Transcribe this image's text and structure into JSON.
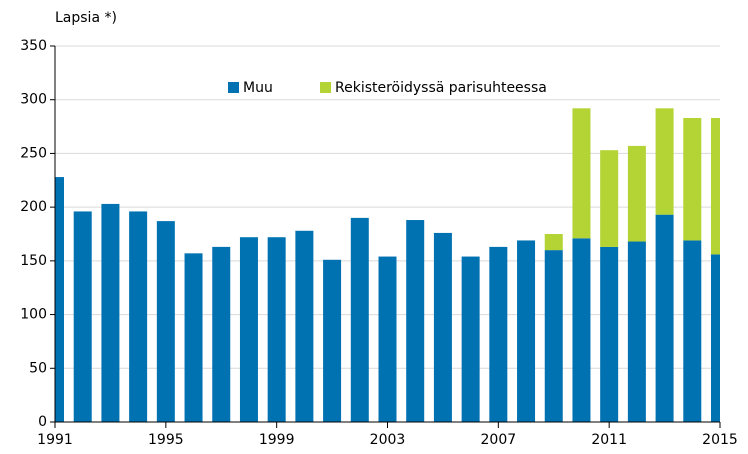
{
  "chart_data": {
    "type": "stacked-bar",
    "y_label": "Lapsia *)",
    "x": [
      1991,
      1992,
      1993,
      1994,
      1995,
      1996,
      1997,
      1998,
      1999,
      2000,
      2001,
      2002,
      2003,
      2004,
      2005,
      2006,
      2007,
      2008,
      2009,
      2010,
      2011,
      2012,
      2013,
      2014,
      2015
    ],
    "series": [
      {
        "name": "Muu",
        "color": "#0072b2",
        "values": [
          228,
          196,
          203,
          196,
          187,
          157,
          163,
          172,
          172,
          178,
          151,
          190,
          154,
          188,
          176,
          154,
          163,
          169,
          160,
          171,
          163,
          168,
          193,
          169,
          156
        ]
      },
      {
        "name": "Rekisteröidyssä parisuhteessa",
        "color": "#b4d334",
        "values": [
          null,
          null,
          null,
          null,
          null,
          null,
          null,
          null,
          null,
          null,
          null,
          null,
          null,
          null,
          null,
          null,
          null,
          null,
          15,
          121,
          90,
          89,
          99,
          114,
          127
        ]
      }
    ],
    "xlim": [
      1991,
      2015
    ],
    "xticks": [
      1991,
      1995,
      1999,
      2003,
      2007,
      2011,
      2015
    ],
    "ylim": [
      0,
      350
    ],
    "yticks": [
      0,
      50,
      100,
      150,
      200,
      250,
      300,
      350
    ],
    "grid": true,
    "legend": "top"
  }
}
